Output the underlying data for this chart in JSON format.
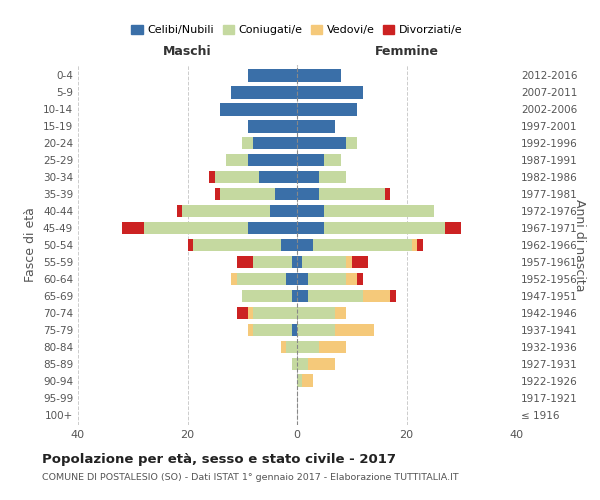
{
  "age_groups": [
    "100+",
    "95-99",
    "90-94",
    "85-89",
    "80-84",
    "75-79",
    "70-74",
    "65-69",
    "60-64",
    "55-59",
    "50-54",
    "45-49",
    "40-44",
    "35-39",
    "30-34",
    "25-29",
    "20-24",
    "15-19",
    "10-14",
    "5-9",
    "0-4"
  ],
  "birth_years": [
    "≤ 1916",
    "1917-1921",
    "1922-1926",
    "1927-1931",
    "1932-1936",
    "1937-1941",
    "1942-1946",
    "1947-1951",
    "1952-1956",
    "1957-1961",
    "1962-1966",
    "1967-1971",
    "1972-1976",
    "1977-1981",
    "1982-1986",
    "1987-1991",
    "1992-1996",
    "1997-2001",
    "2002-2006",
    "2007-2011",
    "2012-2016"
  ],
  "male": {
    "celibi": [
      0,
      0,
      0,
      0,
      0,
      1,
      0,
      1,
      2,
      1,
      3,
      9,
      5,
      4,
      7,
      9,
      8,
      9,
      14,
      12,
      9
    ],
    "coniugati": [
      0,
      0,
      0,
      1,
      2,
      7,
      8,
      9,
      9,
      7,
      16,
      19,
      16,
      10,
      8,
      4,
      2,
      0,
      0,
      0,
      0
    ],
    "vedovi": [
      0,
      0,
      0,
      0,
      1,
      1,
      1,
      0,
      1,
      0,
      0,
      0,
      0,
      0,
      0,
      0,
      0,
      0,
      0,
      0,
      0
    ],
    "divorziati": [
      0,
      0,
      0,
      0,
      0,
      0,
      2,
      0,
      0,
      3,
      1,
      4,
      1,
      1,
      1,
      0,
      0,
      0,
      0,
      0,
      0
    ]
  },
  "female": {
    "nubili": [
      0,
      0,
      0,
      0,
      0,
      0,
      0,
      2,
      2,
      1,
      3,
      5,
      5,
      4,
      4,
      5,
      9,
      7,
      11,
      12,
      8
    ],
    "coniugate": [
      0,
      0,
      1,
      2,
      4,
      7,
      7,
      10,
      7,
      8,
      18,
      22,
      20,
      12,
      5,
      3,
      2,
      0,
      0,
      0,
      0
    ],
    "vedove": [
      0,
      0,
      2,
      5,
      5,
      7,
      2,
      5,
      2,
      1,
      1,
      0,
      0,
      0,
      0,
      0,
      0,
      0,
      0,
      0,
      0
    ],
    "divorziate": [
      0,
      0,
      0,
      0,
      0,
      0,
      0,
      1,
      1,
      3,
      1,
      3,
      0,
      1,
      0,
      0,
      0,
      0,
      0,
      0,
      0
    ]
  },
  "colors": {
    "celibi": "#3a6fa8",
    "coniugati": "#c5d9a0",
    "vedovi": "#f5c97a",
    "divorziati": "#cc2222"
  },
  "xlim": 40,
  "title": "Popolazione per età, sesso e stato civile - 2017",
  "subtitle": "COMUNE DI POSTALESIO (SO) - Dati ISTAT 1° gennaio 2017 - Elaborazione TUTTITALIA.IT",
  "ylabel_left": "Fasce di età",
  "ylabel_right": "Anni di nascita",
  "label_maschi": "Maschi",
  "label_femmine": "Femmine",
  "legend_labels": [
    "Celibi/Nubili",
    "Coniugati/e",
    "Vedovi/e",
    "Divorziati/e"
  ],
  "background_color": "#ffffff",
  "grid_color": "#cccccc"
}
